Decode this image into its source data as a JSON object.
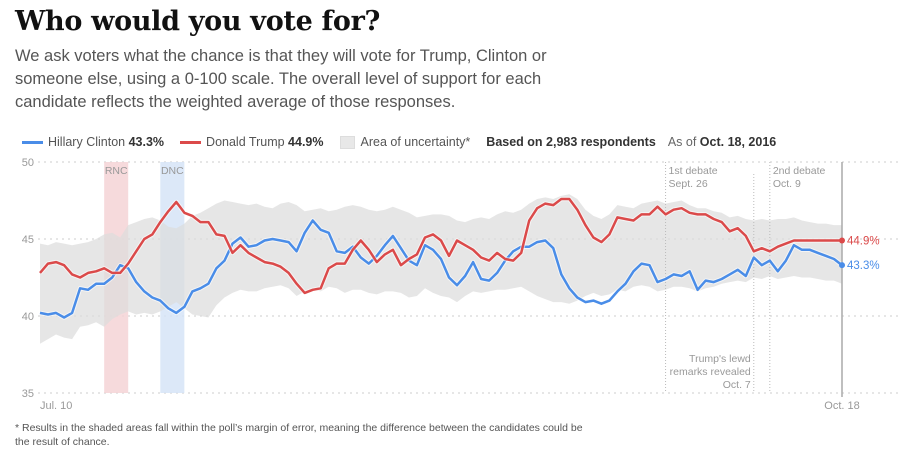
{
  "header": {
    "title": "Who would you vote for?",
    "description": "We ask voters what the chance is that they will vote for Trump, Clinton or someone else, using a 0-100 scale. The overall level of support for each candidate reflects the weighted average of those responses."
  },
  "legend": {
    "clinton_label": "Hillary Clinton",
    "clinton_value": "43.3%",
    "trump_label": "Donald Trump",
    "trump_value": "44.9%",
    "uncertainty_label": "Area of uncertainty*",
    "respondents": "Based on 2,983 respondents",
    "as_of_prefix": "As of",
    "as_of_date": "Oct. 18, 2016"
  },
  "footnote": "* Results in the shaded areas fall within the poll’s margin of error, meaning the difference between the candidates could be the result of chance.",
  "colors": {
    "clinton": "#4a8de8",
    "trump": "#db4a4a",
    "uncertainty": "#e6e6e6",
    "rnc_band": "#f4d4d6",
    "dnc_band": "#d6e4f7"
  },
  "chart_data": {
    "type": "line",
    "title": "Who would you vote for?",
    "xlabel": "",
    "ylabel": "",
    "ylim": [
      35,
      50
    ],
    "yticks": [
      35,
      40,
      45,
      50
    ],
    "x_start_label": "Jul. 10",
    "x_end_label": "Oct. 18",
    "x_domain_days": [
      0,
      100
    ],
    "grid": true,
    "legend_position": "top",
    "series": [
      {
        "name": "Hillary Clinton",
        "end_label": "43.3%",
        "values": [
          40.2,
          40.1,
          40.2,
          39.9,
          40.2,
          41.8,
          41.7,
          42.1,
          42.1,
          42.5,
          43.3,
          43.1,
          42.2,
          41.6,
          41.2,
          41.0,
          40.5,
          40.2,
          40.6,
          41.6,
          41.8,
          42.1,
          43.1,
          43.6,
          44.7,
          45.1,
          44.5,
          44.6,
          44.9,
          45.0,
          44.9,
          44.8,
          44.2,
          45.4,
          46.2,
          45.6,
          45.4,
          44.2,
          44.1,
          44.5,
          43.8,
          43.4,
          43.9,
          44.6,
          45.2,
          44.4,
          43.6,
          43.3,
          44.6,
          44.3,
          43.7,
          42.5,
          42.0,
          42.6,
          43.5,
          42.4,
          42.3,
          42.8,
          43.6,
          44.2,
          44.5,
          44.5,
          44.8,
          44.9,
          44.4,
          42.7,
          41.8,
          41.2,
          40.9,
          41.0,
          40.8,
          41.0,
          41.6,
          42.1,
          42.9,
          43.4,
          43.3,
          42.2,
          42.4,
          42.7,
          42.6,
          42.9,
          41.7,
          42.3,
          42.2,
          42.4,
          42.7,
          43.0,
          42.6,
          43.8,
          43.3,
          43.6,
          42.9,
          43.6,
          44.6,
          44.3,
          44.3,
          44.1,
          43.9,
          43.7,
          43.3
        ],
        "color": "#4a8de8"
      },
      {
        "name": "Donald Trump",
        "end_label": "44.9%",
        "values": [
          42.8,
          43.4,
          43.5,
          43.3,
          42.7,
          42.5,
          42.8,
          42.9,
          43.1,
          42.8,
          42.8,
          43.4,
          44.2,
          45.0,
          45.3,
          46.1,
          46.8,
          47.4,
          46.7,
          46.5,
          46.1,
          46.1,
          45.3,
          45.2,
          44.1,
          44.6,
          44.1,
          43.8,
          43.5,
          43.4,
          43.2,
          42.8,
          42.1,
          41.5,
          41.7,
          41.8,
          43.1,
          43.4,
          43.4,
          44.3,
          44.9,
          44.3,
          43.5,
          44.0,
          44.3,
          43.3,
          43.7,
          44.0,
          45.1,
          45.3,
          44.9,
          43.9,
          44.9,
          44.6,
          44.3,
          43.8,
          43.6,
          44.1,
          43.7,
          43.6,
          44.1,
          46.2,
          47.0,
          47.3,
          47.2,
          47.6,
          47.6,
          46.9,
          45.9,
          45.1,
          44.8,
          45.3,
          46.4,
          46.3,
          46.2,
          46.6,
          46.6,
          47.1,
          46.6,
          46.9,
          47.0,
          46.7,
          46.6,
          46.6,
          46.3,
          46.1,
          45.5,
          45.7,
          45.2,
          44.2,
          44.4,
          44.2,
          44.5,
          44.7,
          44.9,
          44.9,
          44.9,
          44.9,
          44.9,
          44.9,
          44.9
        ],
        "color": "#db4a4a"
      },
      {
        "name": "Area of uncertainty (upper)",
        "values": [
          44.7,
          44.6,
          44.8,
          44.7,
          44.6,
          44.7,
          44.8,
          45.0,
          45.3,
          45.4,
          45.1,
          45.9,
          46.1,
          46.3,
          46.4,
          46.2,
          45.8,
          45.7,
          46.0,
          46.5,
          46.7,
          47.0,
          47.3,
          47.5,
          47.4,
          47.3,
          47.2,
          47.3,
          47.1,
          47.0,
          47.3,
          47.4,
          47.2,
          46.8,
          46.9,
          47.0,
          46.8,
          46.9,
          47.1,
          47.2,
          47.1,
          46.9,
          46.8,
          46.9,
          47.1,
          46.9,
          46.7,
          46.4,
          46.5,
          46.6,
          46.6,
          46.5,
          46.2,
          46.1,
          46.3,
          46.4,
          46.3,
          46.6,
          46.8,
          46.7,
          46.9,
          47.3,
          47.6,
          47.7,
          47.6,
          47.8,
          47.9,
          47.6,
          46.9,
          46.5,
          46.3,
          46.6,
          47.2,
          47.1,
          47.0,
          47.3,
          47.4,
          47.5,
          47.3,
          47.4,
          47.5,
          47.2,
          47.0,
          47.0,
          46.8,
          46.7,
          46.4,
          46.5,
          46.3,
          46.2,
          46.3,
          46.2,
          46.3,
          46.3,
          46.4,
          46.2,
          46.1,
          46.0,
          46.0,
          45.9,
          45.9
        ]
      },
      {
        "name": "Area of uncertainty (lower)",
        "values": [
          38.2,
          38.5,
          38.8,
          38.6,
          38.5,
          39.3,
          39.4,
          39.6,
          39.3,
          39.8,
          40.1,
          40.3,
          40.1,
          40.2,
          40.1,
          40.3,
          40.6,
          40.9,
          40.5,
          40.1,
          40.0,
          39.9,
          40.7,
          41.2,
          41.5,
          41.7,
          41.6,
          41.6,
          41.8,
          41.9,
          42.0,
          41.8,
          41.3,
          41.6,
          41.7,
          41.6,
          41.9,
          41.8,
          41.5,
          41.7,
          41.7,
          41.5,
          41.4,
          41.6,
          41.6,
          41.5,
          41.2,
          41.3,
          41.8,
          41.5,
          41.3,
          41.2,
          40.9,
          41.3,
          41.6,
          41.5,
          41.6,
          41.7,
          41.7,
          41.8,
          41.9,
          41.6,
          41.3,
          41.1,
          40.9,
          40.9,
          40.8,
          41.0,
          41.3,
          41.5,
          41.3,
          41.4,
          41.7,
          41.6,
          41.9,
          42.0,
          41.9,
          41.6,
          41.7,
          41.9,
          41.9,
          41.8,
          41.6,
          41.8,
          41.9,
          42.1,
          42.2,
          42.3,
          42.2,
          42.5,
          42.4,
          42.6,
          42.4,
          42.5,
          42.6,
          42.5,
          42.5,
          42.4,
          42.3,
          42.3,
          42.1
        ]
      }
    ],
    "event_bands": [
      {
        "label": "RNC",
        "start_day": 8,
        "end_day": 11,
        "color": "#f4d4d6"
      },
      {
        "label": "DNC",
        "start_day": 15,
        "end_day": 18,
        "color": "#d6e4f7"
      }
    ],
    "event_lines": [
      {
        "label_lines": [
          "1st debate",
          "Sept. 26"
        ],
        "day": 78,
        "position": "top"
      },
      {
        "label_lines": [
          "Trump's lewd",
          "remarks revealed",
          "Oct. 7"
        ],
        "day": 89,
        "position": "bottom"
      },
      {
        "label_lines": [
          "2nd debate",
          "Oct. 9"
        ],
        "day": 91,
        "position": "top"
      }
    ],
    "end_labels": {
      "trump": "44.9%",
      "clinton": "43.3%"
    }
  }
}
